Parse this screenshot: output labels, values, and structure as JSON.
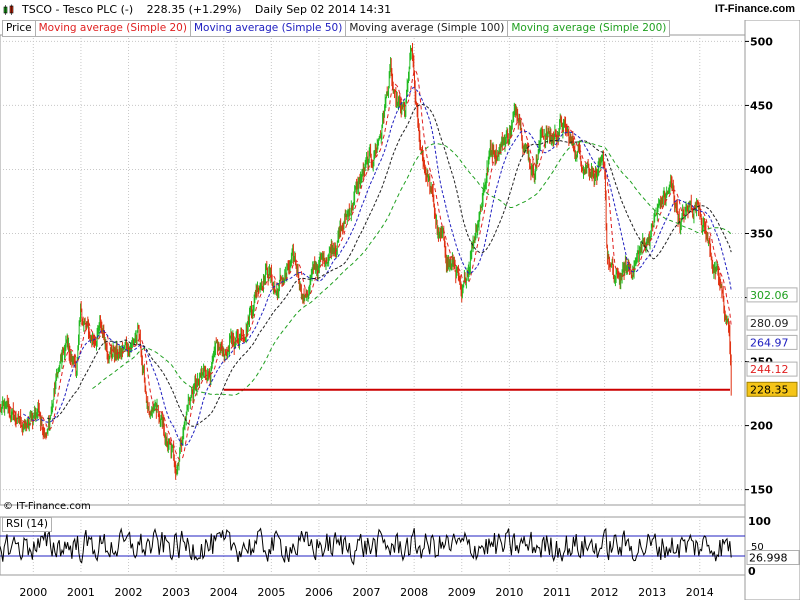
{
  "header": {
    "symbol_title": "TSCO - Tesco PLC (-)",
    "price_change": "228.35 (+1.29%)",
    "period_date": "Daily  Sep 02 2014 14:31",
    "brand": "IT-Finance.com"
  },
  "legend": {
    "items": [
      {
        "label": "Price",
        "color": "#000000"
      },
      {
        "label": "Moving average (Simple 20)",
        "color": "#e02020"
      },
      {
        "label": "Moving average (Simple 50)",
        "color": "#2020c0"
      },
      {
        "label": "Moving average (Simple 100)",
        "color": "#202020"
      },
      {
        "label": "Moving average (Simple 200)",
        "color": "#20a020"
      }
    ]
  },
  "copyright": "© IT-Finance.com",
  "rsi_label": "RSI (14)",
  "colors": {
    "up_candle": "#22bb22",
    "down_candle": "#e03010",
    "sma20": "#e02020",
    "sma50": "#2020c0",
    "sma100": "#202020",
    "sma200": "#20a020",
    "support_line": "#cc0000",
    "rsi_line": "#000000",
    "rsi_bounds": "#2020c0",
    "grid": "#c8c8c8",
    "last_price_bg": "#f5c518"
  },
  "chart_data": {
    "type": "line",
    "title": "TSCO - Tesco PLC (-)",
    "x_ticks": [
      "2000",
      "2001",
      "2002",
      "2003",
      "2004",
      "2005",
      "2006",
      "2007",
      "2008",
      "2009",
      "2010",
      "2011",
      "2012",
      "2013",
      "2014"
    ],
    "y_ticks": [
      150,
      200,
      250,
      300,
      350,
      400,
      450,
      500
    ],
    "ylim": [
      138,
      505
    ],
    "xlim": [
      1999.3,
      2014.95
    ],
    "grid": true,
    "price_series": {
      "name": "Price",
      "x": [
        1999.3,
        1999.6,
        1999.9,
        2000.1,
        2000.3,
        2000.5,
        2000.7,
        2000.9,
        2001.0,
        2001.2,
        2001.4,
        2001.6,
        2001.8,
        2002.0,
        2002.2,
        2002.3,
        2002.45,
        2002.6,
        2002.8,
        2003.0,
        2003.15,
        2003.3,
        2003.5,
        2003.7,
        2003.9,
        2004.1,
        2004.3,
        2004.5,
        2004.7,
        2004.9,
        2005.1,
        2005.3,
        2005.5,
        2005.7,
        2005.9,
        2006.1,
        2006.3,
        2006.5,
        2006.7,
        2006.9,
        2007.1,
        2007.3,
        2007.5,
        2007.6,
        2007.8,
        2007.95,
        2008.1,
        2008.3,
        2008.5,
        2008.7,
        2008.9,
        2009.0,
        2009.2,
        2009.4,
        2009.6,
        2009.8,
        2010.0,
        2010.2,
        2010.35,
        2010.5,
        2010.7,
        2010.9,
        2011.1,
        2011.3,
        2011.5,
        2011.7,
        2011.9,
        2012.0,
        2012.05,
        2012.2,
        2012.4,
        2012.6,
        2012.8,
        2013.0,
        2013.2,
        2013.4,
        2013.6,
        2013.8,
        2014.0,
        2014.2,
        2014.4,
        2014.55,
        2014.62,
        2014.66
      ],
      "values": [
        212,
        205,
        198,
        215,
        195,
        240,
        260,
        245,
        285,
        265,
        275,
        262,
        255,
        262,
        272,
        245,
        200,
        210,
        185,
        168,
        200,
        225,
        232,
        245,
        255,
        260,
        270,
        285,
        310,
        325,
        305,
        318,
        325,
        300,
        320,
        330,
        345,
        355,
        375,
        395,
        405,
        430,
        475,
        448,
        440,
        490,
        420,
        395,
        350,
        330,
        320,
        290,
        340,
        375,
        415,
        420,
        430,
        448,
        420,
        400,
        430,
        425,
        435,
        420,
        410,
        405,
        395,
        400,
        335,
        310,
        318,
        325,
        340,
        355,
        375,
        385,
        360,
        370,
        375,
        340,
        310,
        285,
        275,
        232
      ]
    },
    "sma_series": [
      {
        "name": "Moving average (Simple 20)",
        "last": 244.12
      },
      {
        "name": "Moving average (Simple 50)",
        "last": 264.97
      },
      {
        "name": "Moving average (Simple 100)",
        "last": 280.09
      },
      {
        "name": "Moving average (Simple 200)",
        "last": 302.06
      }
    ],
    "last_price": 228.35,
    "support_level": 228,
    "support_from": 2004.0,
    "price_labels": [
      "302.06",
      "280.09",
      "264.97",
      "244.12",
      "228.35"
    ],
    "rsi": {
      "name": "RSI (14)",
      "y_ticks": [
        0,
        50,
        100
      ],
      "upper_band": 70,
      "lower_band": 30,
      "last": 26.998,
      "last_label": "26.998"
    }
  }
}
